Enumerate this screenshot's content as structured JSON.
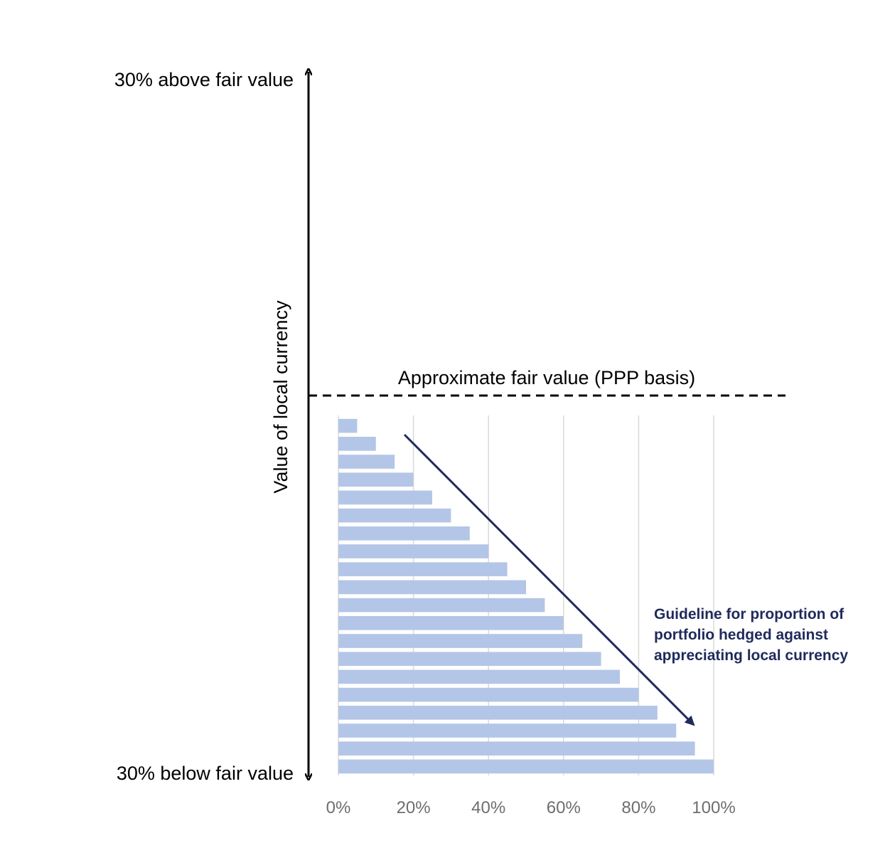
{
  "chart_data": {
    "type": "bar",
    "orientation": "horizontal",
    "title": "",
    "xlabel": "",
    "ylabel": "Value of local currency",
    "xlim": [
      0,
      1
    ],
    "x_ticks": [
      "0%",
      "20%",
      "40%",
      "60%",
      "80%",
      "100%"
    ],
    "grid": "vertical",
    "values": [
      0.05,
      0.1,
      0.15,
      0.2,
      0.25,
      0.3,
      0.35,
      0.4,
      0.45,
      0.5,
      0.55,
      0.6,
      0.65,
      0.7,
      0.75,
      0.8,
      0.85,
      0.9,
      0.95,
      1.0
    ],
    "bar_color": "#b4c6e7",
    "top_label": "30% above fair value",
    "bottom_label": "30% below fair value",
    "fair_value_label": "Approximate fair value (PPP basis)",
    "annotation_lines": [
      "Guideline for proportion of",
      "portfolio hedged against",
      "appreciating local currency"
    ],
    "annotation_color": "#1f2a5c",
    "axis_color": "#000000",
    "grid_color": "#d9d9d9"
  }
}
